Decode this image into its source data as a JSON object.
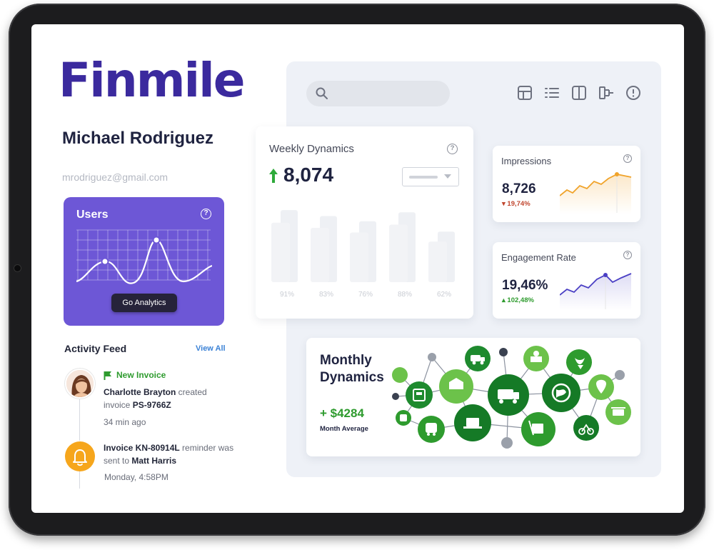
{
  "brand": {
    "logo_text": "Finmile",
    "color": "#3b2a9e"
  },
  "profile": {
    "name": "Michael Rodriguez",
    "email": "mrodriguez@gmail.com"
  },
  "users_card": {
    "title": "Users",
    "help_icon": "?",
    "button_label": "Go Analytics",
    "accent": "#6d57d6"
  },
  "activity_feed": {
    "title": "Activity Feed",
    "view_all": "View All",
    "events": [
      {
        "tag": "New Invoice",
        "actor": "Charlotte Brayton",
        "action": " created invoice ",
        "ref": "PS-9766Z",
        "time": "34  min ago"
      },
      {
        "ref": "Invoice KN-80914L",
        "action": " reminder was sent to ",
        "target": "Matt Harris",
        "time": "Monday, 4:58PM"
      }
    ]
  },
  "toolbar": {
    "icons": [
      "table-icon",
      "list-icon",
      "columns-icon",
      "flow-icon",
      "alert-icon"
    ]
  },
  "weekly_dynamics": {
    "title": "Weekly Dynamics",
    "value": "8,074",
    "trend": "up",
    "chart_data": {
      "type": "bar",
      "categories": [
        "91%",
        "83%",
        "76%",
        "88%",
        "62%"
      ]
    }
  },
  "impressions": {
    "title": "Impressions",
    "value": "8,726",
    "delta": "19,74%",
    "trend": "down",
    "color": "#f0a32a"
  },
  "engagement": {
    "title": "Engagement Rate",
    "value": "19,46%",
    "delta": "102,48%",
    "trend": "up",
    "color": "#4a3fc4"
  },
  "monthly_dynamics": {
    "title": "Monthly Dynamics",
    "value": "+ $4284",
    "subtitle": "Month Average",
    "accent": "#2e9b2e"
  }
}
